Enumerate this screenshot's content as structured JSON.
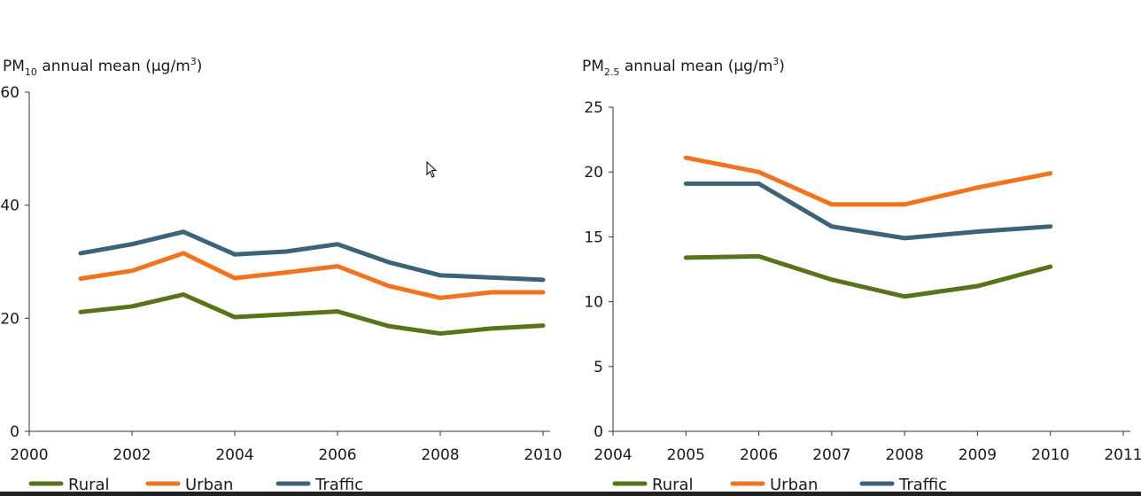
{
  "colors": {
    "rural": "#5a7219",
    "urban": "#f07420",
    "traffic": "#3c6378"
  },
  "chart_data": [
    {
      "type": "line",
      "title_prefix": "PM",
      "title_sub": "10",
      "title_rest": " annual mean (µg/m",
      "title_sup": "3",
      "title_end": ")",
      "xlim": [
        2000,
        2010
      ],
      "ylim": [
        0,
        60
      ],
      "xticks": [
        2000,
        2002,
        2004,
        2006,
        2008,
        2010
      ],
      "yticks": [
        0,
        20,
        40,
        60
      ],
      "series": [
        {
          "name": "Rural",
          "color_key": "rural",
          "x": [
            2001,
            2002,
            2003,
            2004,
            2005,
            2006,
            2007,
            2008,
            2009,
            2010
          ],
          "y": [
            21.1,
            22.1,
            24.2,
            20.2,
            20.7,
            21.2,
            18.6,
            17.3,
            18.2,
            18.7
          ]
        },
        {
          "name": "Urban",
          "color_key": "urban",
          "x": [
            2001,
            2002,
            2003,
            2004,
            2005,
            2006,
            2007,
            2008,
            2009,
            2010
          ],
          "y": [
            27.0,
            28.4,
            31.5,
            27.1,
            28.1,
            29.2,
            25.7,
            23.6,
            24.6,
            24.6
          ]
        },
        {
          "name": "Traffic",
          "color_key": "traffic",
          "x": [
            2001,
            2002,
            2003,
            2004,
            2005,
            2006,
            2007,
            2008,
            2009,
            2010
          ],
          "y": [
            31.5,
            33.1,
            35.3,
            31.3,
            31.8,
            33.1,
            29.9,
            27.6,
            27.2,
            26.8
          ]
        }
      ],
      "legend": [
        "Rural",
        "Urban",
        "Traffic"
      ],
      "legend_position": "bottom",
      "grid": false
    },
    {
      "type": "line",
      "title_prefix": "PM",
      "title_sub": "2.5",
      "title_rest": " annual mean (µg/m",
      "title_sup": "3",
      "title_end": ")",
      "xlim": [
        2004,
        2011
      ],
      "ylim": [
        0,
        25
      ],
      "xticks": [
        2004,
        2005,
        2006,
        2007,
        2008,
        2009,
        2010,
        2011
      ],
      "yticks": [
        0,
        5,
        10,
        15,
        20,
        25
      ],
      "series": [
        {
          "name": "Rural",
          "color_key": "rural",
          "x": [
            2005,
            2006,
            2007,
            2008,
            2009,
            2010
          ],
          "y": [
            13.4,
            13.5,
            11.7,
            10.4,
            11.2,
            12.7
          ]
        },
        {
          "name": "Urban",
          "color_key": "urban",
          "x": [
            2005,
            2006,
            2007,
            2008,
            2009,
            2010
          ],
          "y": [
            21.1,
            20.0,
            17.5,
            17.5,
            18.8,
            19.9
          ]
        },
        {
          "name": "Traffic",
          "color_key": "traffic",
          "x": [
            2005,
            2006,
            2007,
            2008,
            2009,
            2010
          ],
          "y": [
            19.1,
            19.1,
            15.8,
            14.9,
            15.4,
            15.8
          ]
        }
      ],
      "legend": [
        "Rural",
        "Urban",
        "Traffic"
      ],
      "legend_position": "bottom",
      "grid": false
    }
  ]
}
